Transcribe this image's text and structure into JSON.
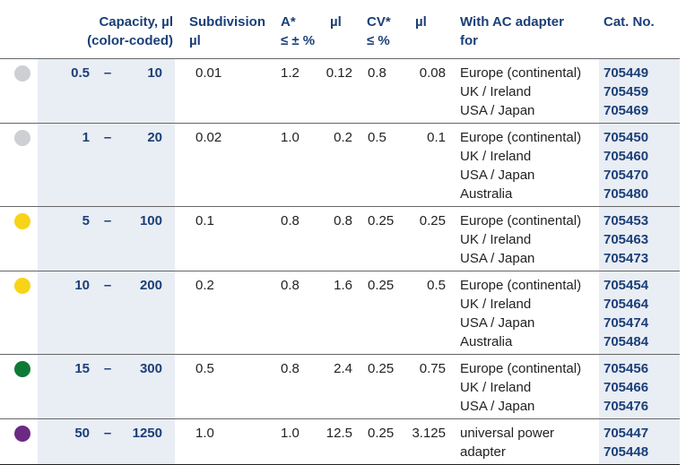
{
  "header": {
    "capacity": [
      "Capacity, µl",
      "(color-coded)"
    ],
    "subdivision": [
      "Subdivision",
      "µl"
    ],
    "a_pct": [
      "A*",
      "≤ ± %"
    ],
    "a_ul": [
      "µl"
    ],
    "cv_pct": [
      "CV*",
      "≤ %"
    ],
    "cv_ul": [
      "µl"
    ],
    "adapter": [
      "With AC adapter",
      "for"
    ],
    "cat_no": [
      "Cat. No."
    ]
  },
  "rows": [
    {
      "color": "#cdcfd2",
      "min": "0.5",
      "dash": "–",
      "max": "10",
      "subdivision": "0.01",
      "a_pct": "1.2",
      "a_ul": "0.12",
      "cv_pct": "0.8",
      "cv_ul": "0.08",
      "adapters": [
        "Europe (continental)",
        "UK / Ireland",
        "USA / Japan"
      ],
      "cat_nos": [
        "705449",
        "705459",
        "705469"
      ]
    },
    {
      "color": "#cdcfd2",
      "min": "1",
      "dash": "–",
      "max": "20",
      "subdivision": "0.02",
      "a_pct": "1.0",
      "a_ul": "0.2",
      "cv_pct": "0.5",
      "cv_ul": "0.1",
      "adapters": [
        "Europe (continental)",
        "UK / Ireland",
        "USA / Japan",
        "Australia"
      ],
      "cat_nos": [
        "705450",
        "705460",
        "705470",
        "705480"
      ]
    },
    {
      "color": "#f7d417",
      "min": "5",
      "dash": "–",
      "max": "100",
      "subdivision": "0.1",
      "a_pct": "0.8",
      "a_ul": "0.8",
      "cv_pct": "0.25",
      "cv_ul": "0.25",
      "adapters": [
        "Europe (continental)",
        "UK / Ireland",
        "USA / Japan"
      ],
      "cat_nos": [
        "705453",
        "705463",
        "705473"
      ]
    },
    {
      "color": "#f7d417",
      "min": "10",
      "dash": "–",
      "max": "200",
      "subdivision": "0.2",
      "a_pct": "0.8",
      "a_ul": "1.6",
      "cv_pct": "0.25",
      "cv_ul": "0.5",
      "adapters": [
        "Europe (continental)",
        "UK / Ireland",
        "USA / Japan",
        "Australia"
      ],
      "cat_nos": [
        "705454",
        "705464",
        "705474",
        "705484"
      ]
    },
    {
      "color": "#0f7a35",
      "min": "15",
      "dash": "–",
      "max": "300",
      "subdivision": "0.5",
      "a_pct": "0.8",
      "a_ul": "2.4",
      "cv_pct": "0.25",
      "cv_ul": "0.75",
      "adapters": [
        "Europe (continental)",
        "UK / Ireland",
        "USA / Japan"
      ],
      "cat_nos": [
        "705456",
        "705466",
        "705476"
      ]
    },
    {
      "color": "#6a2a84",
      "min": "50",
      "dash": "–",
      "max": "1250",
      "subdivision": "1.0",
      "a_pct": "1.0",
      "a_ul": "12.5",
      "cv_pct": "0.25",
      "cv_ul": "3.125",
      "adapters": [
        "universal power",
        "adapter"
      ],
      "cat_nos": [
        "705447",
        "705448"
      ]
    }
  ]
}
